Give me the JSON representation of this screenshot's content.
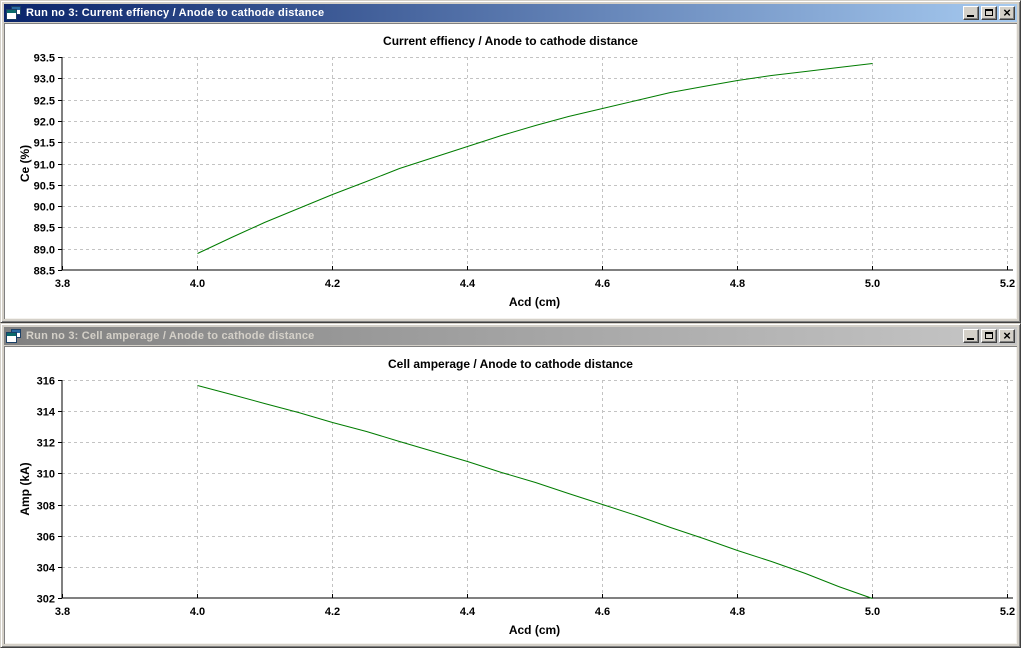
{
  "windows": [
    {
      "title": "Run no 3: Current effiency / Anode to cathode distance",
      "state": "active"
    },
    {
      "title": "Run no 3: Cell amperage / Anode to cathode distance",
      "state": "inactive"
    }
  ],
  "titlebar_buttons": {
    "minimize": "minimize",
    "maximize": "maximize",
    "close": "close",
    "close_glyph": "×"
  },
  "colors": {
    "active_title_start": "#0a246a",
    "active_title_end": "#a6caf0",
    "inactive_title_start": "#808080",
    "inactive_title_end": "#c6c6c6",
    "line_color": "#007c00",
    "grid_color": "#c3c3c3",
    "axis_color": "#000000",
    "window_face": "#d4d0c8",
    "plot_background": "#ffffff"
  },
  "chart_data": [
    {
      "type": "line",
      "title": "Current effiency / Anode to cathode distance",
      "xlabel": "Acd (cm)",
      "ylabel": "Ce (%)",
      "xlim": [
        3.8,
        5.2
      ],
      "ylim": [
        88.5,
        93.5
      ],
      "xticks": [
        3.8,
        4.0,
        4.2,
        4.4,
        4.6,
        4.8,
        5.0,
        5.2
      ],
      "xtick_labels": [
        "3.8",
        "4.0",
        "4.2",
        "4.4",
        "4.6",
        "4.8",
        "5.0",
        "5.2"
      ],
      "yticks": [
        88.5,
        89.0,
        89.5,
        90.0,
        90.5,
        91.0,
        91.5,
        92.0,
        92.5,
        93.0,
        93.5
      ],
      "ytick_labels": [
        "88.5",
        "89.0",
        "89.5",
        "90.0",
        "90.5",
        "91.0",
        "91.5",
        "92.0",
        "92.5",
        "93.0",
        "93.5"
      ],
      "grid": true,
      "legend": null,
      "x": [
        4.0,
        4.05,
        4.1,
        4.15,
        4.2,
        4.25,
        4.3,
        4.35,
        4.4,
        4.45,
        4.5,
        4.55,
        4.6,
        4.65,
        4.7,
        4.75,
        4.8,
        4.85,
        4.9,
        4.95,
        5.0
      ],
      "y": [
        88.9,
        89.27,
        89.62,
        89.96,
        90.29,
        90.59,
        90.89,
        91.16,
        91.42,
        91.67,
        91.9,
        92.11,
        92.31,
        92.5,
        92.67,
        92.82,
        92.96,
        93.08,
        93.18,
        93.27,
        93.35
      ]
    },
    {
      "type": "line",
      "title": "Cell amperage / Anode to cathode distance",
      "xlabel": "Acd (cm)",
      "ylabel": "Amp (kA)",
      "xlim": [
        3.8,
        5.2
      ],
      "ylim": [
        302,
        316
      ],
      "xticks": [
        3.8,
        4.0,
        4.2,
        4.4,
        4.6,
        4.8,
        5.0,
        5.2
      ],
      "xtick_labels": [
        "3.8",
        "4.0",
        "4.2",
        "4.4",
        "4.6",
        "4.8",
        "5.0",
        "5.2"
      ],
      "yticks": [
        302,
        304,
        306,
        308,
        310,
        312,
        314,
        316
      ],
      "ytick_labels": [
        "302",
        "304",
        "306",
        "308",
        "310",
        "312",
        "314",
        "316"
      ],
      "grid": true,
      "legend": null,
      "x": [
        4.0,
        4.05,
        4.1,
        4.15,
        4.2,
        4.25,
        4.3,
        4.35,
        4.4,
        4.45,
        4.5,
        4.55,
        4.6,
        4.65,
        4.7,
        4.75,
        4.8,
        4.85,
        4.9,
        4.95,
        5.0
      ],
      "y": [
        315.7,
        315.12,
        314.54,
        313.94,
        313.33,
        312.71,
        312.07,
        311.43,
        310.77,
        310.1,
        309.43,
        308.73,
        308.03,
        307.32,
        306.59,
        305.86,
        305.11,
        304.35,
        303.58,
        302.79,
        302.0
      ]
    }
  ]
}
